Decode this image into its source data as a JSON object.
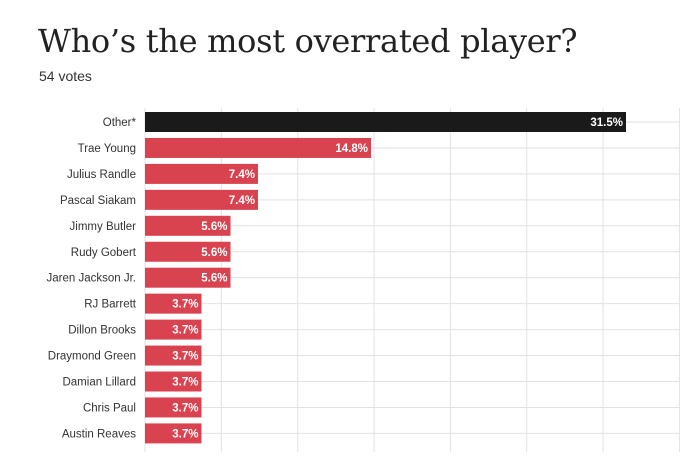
{
  "header": {
    "title": "Who’s the most overrated player?",
    "subtitle": "54 votes"
  },
  "colors": {
    "highlight": "#1a1a1a",
    "bar": "#d9434f",
    "grid": "#e2e2e2"
  },
  "chart_data": {
    "type": "bar",
    "orientation": "horizontal",
    "categories": [
      "Other*",
      "Trae Young",
      "Julius Randle",
      "Pascal Siakam",
      "Jimmy Butler",
      "Rudy Gobert",
      "Jaren Jackson Jr.",
      "RJ Barrett",
      "Dillon Brooks",
      "Draymond Green",
      "Damian Lillard",
      "Chris Paul",
      "Austin Reaves"
    ],
    "values": [
      31.5,
      14.8,
      7.4,
      7.4,
      5.6,
      5.6,
      5.6,
      3.7,
      3.7,
      3.7,
      3.7,
      3.7,
      3.7
    ],
    "value_labels": [
      "31.5%",
      "14.8%",
      "7.4%",
      "7.4%",
      "5.6%",
      "5.6%",
      "5.6%",
      "3.7%",
      "3.7%",
      "3.7%",
      "3.7%",
      "3.7%",
      "3.7%"
    ],
    "highlight_index": 0,
    "xlim": [
      0,
      35
    ],
    "grid": true
  }
}
